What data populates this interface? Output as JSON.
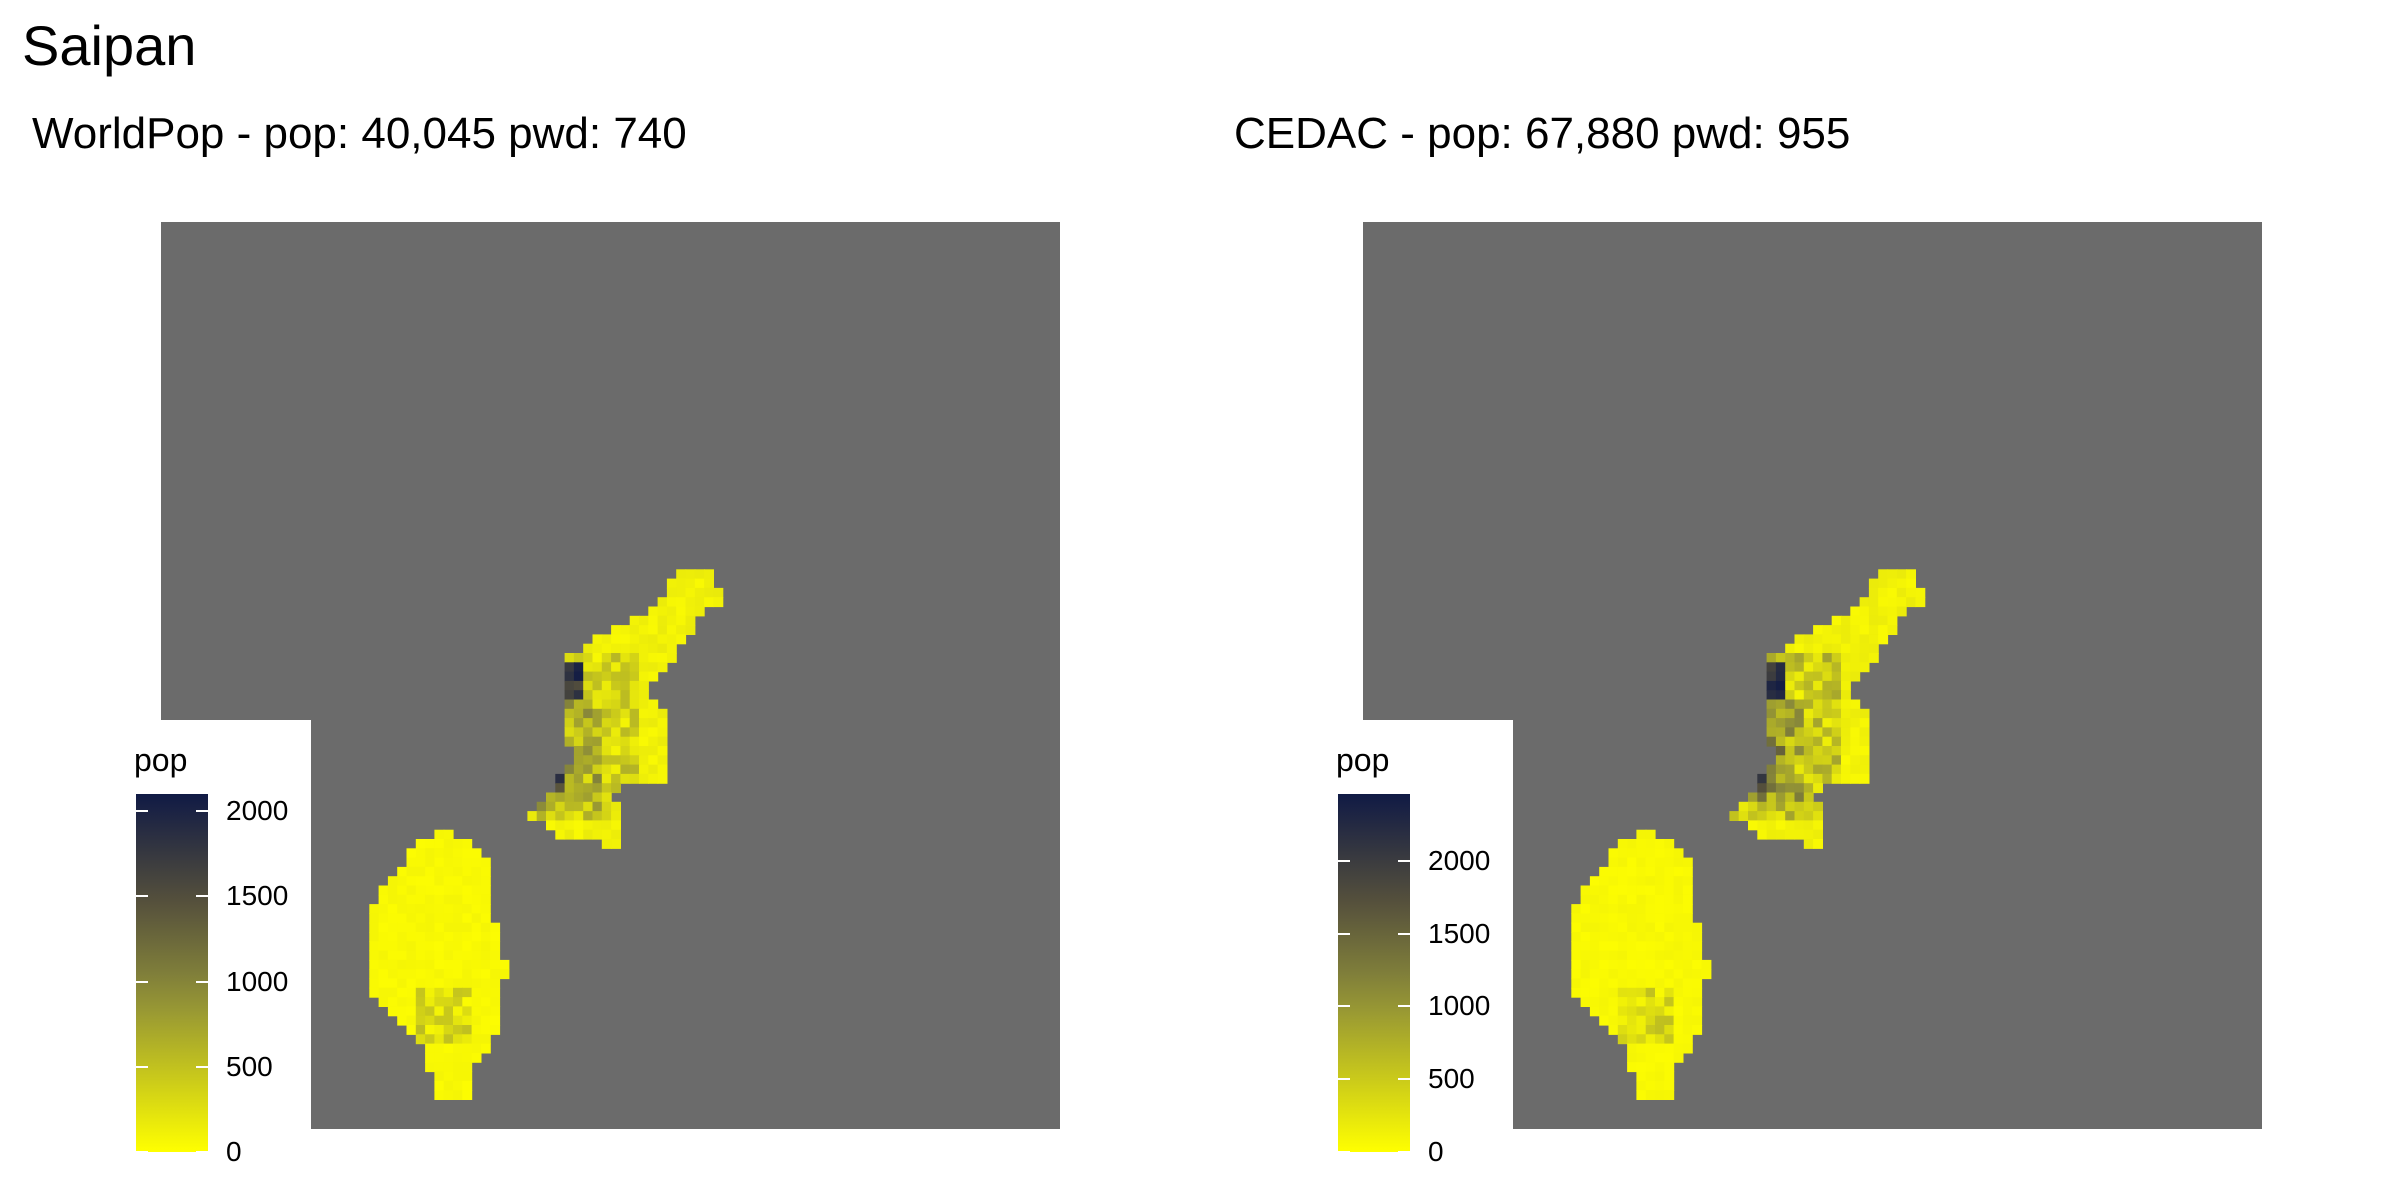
{
  "title": "Saipan",
  "panels": [
    {
      "subtitle": "WorldPop - pop: 40,045 pwd: 740",
      "legend_title": "pop",
      "legend_ticks": [
        "0",
        "500",
        "1000",
        "1500",
        "2000"
      ],
      "legend_max": 2100
    },
    {
      "subtitle": "CEDAC - pop: 67,880 pwd: 955",
      "legend_title": "pop",
      "legend_ticks": [
        "0",
        "500",
        "1000",
        "1500",
        "2000"
      ],
      "legend_max": 2460
    }
  ],
  "colors": {
    "background_sea": "#6b6b6b",
    "low": "#ffff00",
    "mid": "#8a8a3a",
    "high": "#101a45"
  },
  "chart_data": [
    {
      "type": "heatmap",
      "title": "WorldPop - pop: 40,045 pwd: 740",
      "legend": "pop",
      "value_range": [
        0,
        2100
      ],
      "legend_ticks": [
        0,
        500,
        1000,
        1500,
        2000
      ]
    },
    {
      "type": "heatmap",
      "title": "CEDAC - pop: 67,880 pwd: 955",
      "legend": "pop",
      "value_range": [
        0,
        2460
      ],
      "legend_ticks": [
        0,
        500,
        1000,
        1500,
        2000
      ]
    }
  ]
}
